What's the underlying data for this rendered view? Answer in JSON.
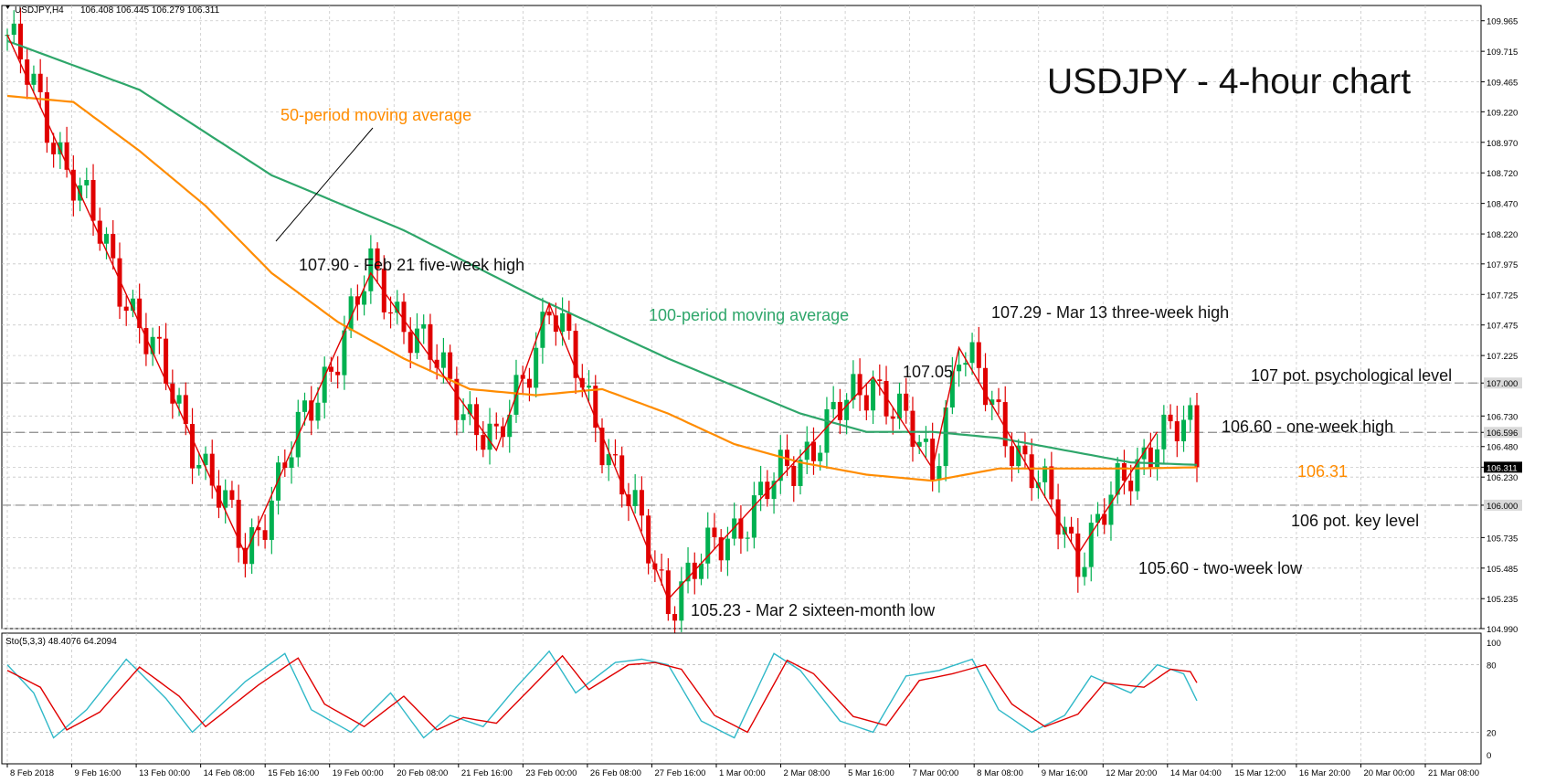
{
  "header": {
    "symbol": "USDJPY,H4",
    "ohlc": "106.408 106.445 106.279 106.311",
    "title": "USDJPY - 4-hour chart"
  },
  "colors": {
    "bull": "#00b050",
    "bear": "#e00000",
    "ma50": "#ff8c00",
    "ma100": "#2ea66a",
    "sto_main": "#2fb8c8",
    "sto_signal": "#e00000",
    "zigzag": "#e00000",
    "grid": "#c8c8c8"
  },
  "annotations": {
    "ma50_label": "50-period moving average",
    "ma100_label": "100-period moving average",
    "feb21_high": "107.90 - Feb 21 five-week high",
    "mar2_low": "105.23 - Mar 2 sixteen-month low",
    "mar8_high": "107.05",
    "mar13_high": "107.29 - Mar 13 three-week high",
    "psych_level": "107 pot. psychological level",
    "week_high": "106.60 - one-week high",
    "current_ma": "106.31",
    "key_level": "106 pot. key level",
    "two_week_low": "105.60 - two-week low"
  },
  "price_axis": {
    "labels": [
      "109.965",
      "109.715",
      "109.465",
      "109.220",
      "108.970",
      "108.720",
      "108.470",
      "108.220",
      "107.975",
      "107.725",
      "107.475",
      "107.225",
      "107.000",
      "106.730",
      "106.596",
      "106.480",
      "106.311",
      "106.230",
      "106.000",
      "105.735",
      "105.485",
      "105.235",
      "104.990"
    ],
    "current": "106.311",
    "marked_levels": [
      "107.000",
      "106.596",
      "106.000"
    ]
  },
  "date_axis": [
    "8 Feb 2018",
    "9 Feb 16:00",
    "13 Feb 00:00",
    "14 Feb 08:00",
    "15 Feb 16:00",
    "19 Feb 00:00",
    "20 Feb 08:00",
    "21 Feb 16:00",
    "23 Feb 00:00",
    "26 Feb 08:00",
    "27 Feb 16:00",
    "1 Mar 00:00",
    "2 Mar 08:00",
    "5 Mar 16:00",
    "7 Mar 00:00",
    "8 Mar 08:00",
    "9 Mar 16:00",
    "12 Mar 20:00",
    "14 Mar 04:00",
    "15 Mar 12:00",
    "16 Mar 20:00",
    "20 Mar 00:00",
    "21 Mar 08:00"
  ],
  "indicator": {
    "label": "Sto(5,3,3) 48.4076 64.2094",
    "levels": [
      "100",
      "80",
      "20",
      "0"
    ]
  },
  "chart_data": [
    {
      "type": "candlestick",
      "title": "USDJPY - 4-hour chart",
      "ylim": [
        104.99,
        110.09
      ],
      "price_ticks": [
        109.965,
        109.715,
        109.465,
        109.22,
        108.97,
        108.72,
        108.47,
        108.22,
        107.975,
        107.725,
        107.475,
        107.225,
        107.0,
        106.73,
        106.596,
        106.48,
        106.311,
        106.23,
        106.0,
        105.735,
        105.485,
        105.235,
        104.99
      ],
      "last_close": 106.311,
      "horizontal_levels": [
        107.0,
        106.596,
        106.0
      ],
      "zigzag_pivots": [
        {
          "bar": 0,
          "price": 109.85
        },
        {
          "bar": 36,
          "price": 105.6
        },
        {
          "bar": 55,
          "price": 107.9
        },
        {
          "bar": 74,
          "price": 106.45
        },
        {
          "bar": 82,
          "price": 107.65
        },
        {
          "bar": 100,
          "price": 105.23
        },
        {
          "bar": 131,
          "price": 107.05
        },
        {
          "bar": 140,
          "price": 106.3
        },
        {
          "bar": 144,
          "price": 107.29
        },
        {
          "bar": 162,
          "price": 105.6
        },
        {
          "bar": 174,
          "price": 106.6
        }
      ],
      "series": [
        {
          "name": "50-period moving average",
          "anchors": [
            [
              0,
              109.35
            ],
            [
              10,
              109.3
            ],
            [
              20,
              108.9
            ],
            [
              30,
              108.45
            ],
            [
              40,
              107.9
            ],
            [
              50,
              107.5
            ],
            [
              60,
              107.2
            ],
            [
              70,
              106.95
            ],
            [
              80,
              106.9
            ],
            [
              90,
              106.95
            ],
            [
              100,
              106.75
            ],
            [
              110,
              106.5
            ],
            [
              120,
              106.35
            ],
            [
              130,
              106.25
            ],
            [
              140,
              106.2
            ],
            [
              150,
              106.3
            ],
            [
              160,
              106.3
            ],
            [
              170,
              106.3
            ],
            [
              180,
              106.31
            ]
          ]
        },
        {
          "name": "100-period moving average",
          "anchors": [
            [
              0,
              109.8
            ],
            [
              20,
              109.4
            ],
            [
              40,
              108.7
            ],
            [
              60,
              108.25
            ],
            [
              80,
              107.7
            ],
            [
              100,
              107.2
            ],
            [
              120,
              106.75
            ],
            [
              130,
              106.6
            ],
            [
              140,
              106.6
            ],
            [
              150,
              106.55
            ],
            [
              160,
              106.45
            ],
            [
              170,
              106.35
            ],
            [
              180,
              106.33
            ]
          ]
        }
      ]
    },
    {
      "type": "line",
      "title": "Sto(5,3,3) 48.4076 64.2094",
      "ylim": [
        0,
        100
      ],
      "levels": [
        80,
        20
      ],
      "series": [
        {
          "name": "main",
          "anchors": [
            [
              0,
              80
            ],
            [
              4,
              55
            ],
            [
              7,
              15
            ],
            [
              12,
              40
            ],
            [
              18,
              85
            ],
            [
              24,
              50
            ],
            [
              28,
              20
            ],
            [
              36,
              65
            ],
            [
              42,
              90
            ],
            [
              46,
              40
            ],
            [
              52,
              20
            ],
            [
              58,
              55
            ],
            [
              63,
              15
            ],
            [
              67,
              35
            ],
            [
              72,
              25
            ],
            [
              77,
              60
            ],
            [
              82,
              92
            ],
            [
              86,
              55
            ],
            [
              92,
              82
            ],
            [
              96,
              85
            ],
            [
              100,
              80
            ],
            [
              105,
              30
            ],
            [
              110,
              15
            ],
            [
              116,
              90
            ],
            [
              120,
              75
            ],
            [
              126,
              30
            ],
            [
              131,
              20
            ],
            [
              136,
              70
            ],
            [
              141,
              75
            ],
            [
              146,
              85
            ],
            [
              150,
              40
            ],
            [
              155,
              20
            ],
            [
              160,
              35
            ],
            [
              164,
              70
            ],
            [
              170,
              55
            ],
            [
              174,
              80
            ],
            [
              178,
              72
            ],
            [
              180,
              48
            ]
          ]
        },
        {
          "name": "signal",
          "anchors": [
            [
              0,
              75
            ],
            [
              5,
              60
            ],
            [
              9,
              22
            ],
            [
              14,
              38
            ],
            [
              20,
              78
            ],
            [
              26,
              52
            ],
            [
              30,
              25
            ],
            [
              38,
              62
            ],
            [
              44,
              86
            ],
            [
              48,
              45
            ],
            [
              54,
              25
            ],
            [
              60,
              52
            ],
            [
              65,
              22
            ],
            [
              69,
              33
            ],
            [
              74,
              28
            ],
            [
              79,
              58
            ],
            [
              84,
              88
            ],
            [
              88,
              58
            ],
            [
              94,
              80
            ],
            [
              98,
              82
            ],
            [
              102,
              76
            ],
            [
              107,
              35
            ],
            [
              112,
              20
            ],
            [
              118,
              84
            ],
            [
              122,
              72
            ],
            [
              128,
              34
            ],
            [
              133,
              26
            ],
            [
              138,
              66
            ],
            [
              143,
              72
            ],
            [
              148,
              80
            ],
            [
              152,
              45
            ],
            [
              157,
              25
            ],
            [
              162,
              36
            ],
            [
              166,
              64
            ],
            [
              172,
              60
            ],
            [
              176,
              76
            ],
            [
              179,
              74
            ],
            [
              180,
              64
            ]
          ]
        }
      ]
    }
  ]
}
